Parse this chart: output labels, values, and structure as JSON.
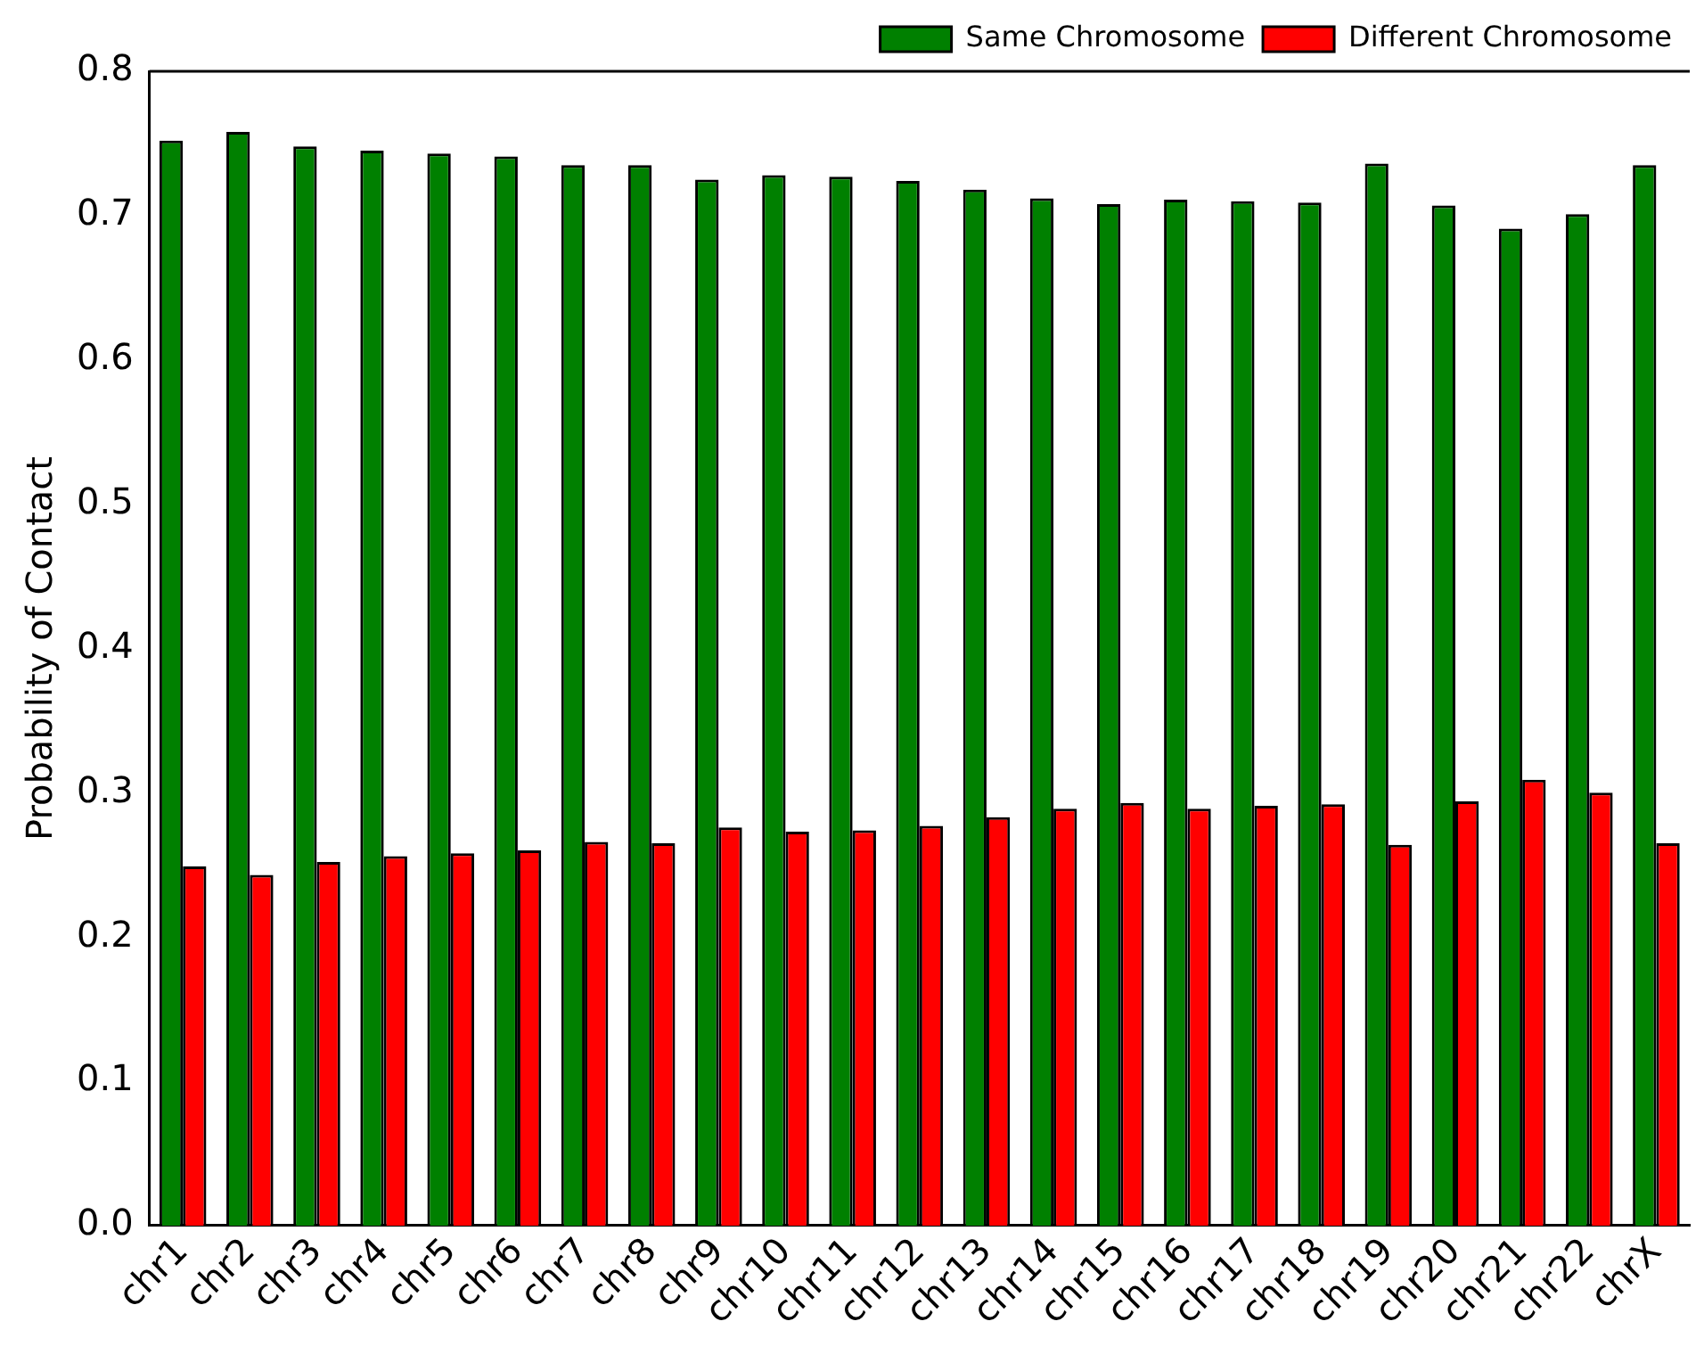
{
  "chart_data": {
    "type": "bar",
    "ylabel": "Probability of Contact",
    "categories": [
      "chr1",
      "chr2",
      "chr3",
      "chr4",
      "chr5",
      "chr6",
      "chr7",
      "chr8",
      "chr9",
      "chr10",
      "chr11",
      "chr12",
      "chr13",
      "chr14",
      "chr15",
      "chr16",
      "chr17",
      "chr18",
      "chr19",
      "chr20",
      "chr21",
      "chr22",
      "chrX"
    ],
    "series": [
      {
        "name": "Same Chromosome",
        "color": "#008000",
        "values": [
          0.752,
          0.758,
          0.748,
          0.745,
          0.743,
          0.741,
          0.735,
          0.735,
          0.725,
          0.728,
          0.727,
          0.724,
          0.718,
          0.712,
          0.708,
          0.711,
          0.71,
          0.709,
          0.736,
          0.707,
          0.691,
          0.701,
          0.735
        ]
      },
      {
        "name": "Different Chromosome",
        "color": "#ff0000",
        "values": [
          0.249,
          0.243,
          0.252,
          0.256,
          0.258,
          0.26,
          0.266,
          0.265,
          0.276,
          0.273,
          0.274,
          0.277,
          0.283,
          0.289,
          0.293,
          0.289,
          0.291,
          0.292,
          0.264,
          0.294,
          0.309,
          0.3,
          0.265
        ]
      }
    ],
    "ylim": [
      0,
      0.8
    ],
    "yticks": [
      {
        "value": 0,
        "label": "0.0"
      },
      {
        "value": 0.1,
        "label": "0.1"
      },
      {
        "value": 0.2,
        "label": "0.2"
      },
      {
        "value": 0.3,
        "label": "0.3"
      },
      {
        "value": 0.4,
        "label": "0.4"
      },
      {
        "value": 0.5,
        "label": "0.5"
      },
      {
        "value": 0.6,
        "label": "0.6"
      },
      {
        "value": 0.7,
        "label": "0.7"
      },
      {
        "value": 0.8,
        "label": "0.8"
      }
    ],
    "grid": false,
    "legend": "top right"
  }
}
